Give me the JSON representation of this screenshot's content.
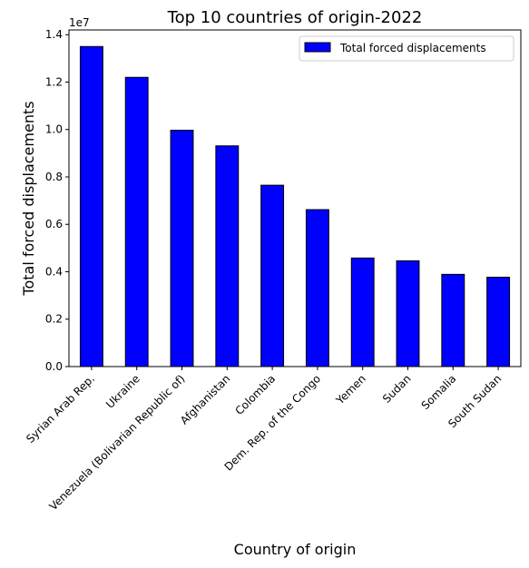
{
  "chart_data": {
    "type": "bar",
    "title": "Top 10 countries of origin-2022",
    "xlabel": "Country of origin",
    "ylabel": "Total forced displacements",
    "y_offset_label": "1e7",
    "categories": [
      "Syrian Arab Rep.",
      "Ukraine",
      "Venezuela (Bolivarian Republic of)",
      "Afghanistan",
      "Colombia",
      "Dem. Rep. of the Congo",
      "Yemen",
      "Sudan",
      "Somalia",
      "South Sudan"
    ],
    "series": [
      {
        "name": "Total forced displacements",
        "color": "#0000ff",
        "values": [
          13500000,
          12200000,
          9970000,
          9310000,
          7650000,
          6620000,
          4580000,
          4460000,
          3890000,
          3770000
        ]
      }
    ],
    "ylim": [
      0,
      14200000
    ],
    "yticks": [
      0.0,
      0.2,
      0.4,
      0.6,
      0.8,
      1.0,
      1.2,
      1.4
    ],
    "ytick_scale": 10000000,
    "legend_position": "top-right",
    "grid": false
  }
}
